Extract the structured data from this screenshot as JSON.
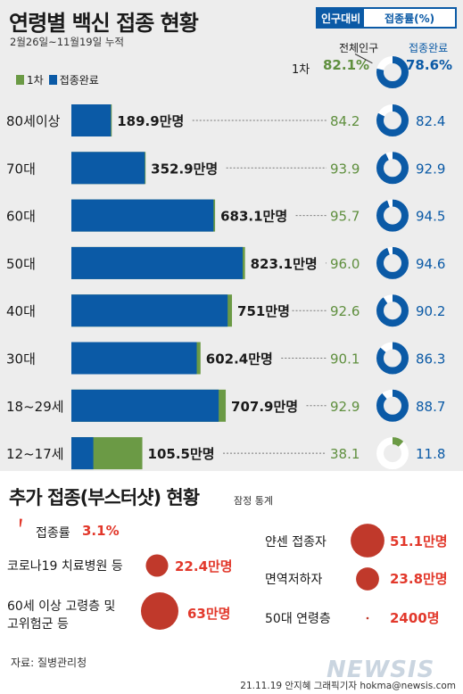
{
  "header": {
    "title": "연령별 백신 접종 현황",
    "badge_left": "인구대비",
    "badge_right": "접종률(%)",
    "period": "2월26일~11월19일 누적",
    "col_total": "전체인구",
    "col_done": "접종완료"
  },
  "legend": {
    "first_dose": "1차",
    "completed": "접종완료"
  },
  "colors": {
    "first_dose": "#6b9a45",
    "completed": "#0b5aa6",
    "accent_red": "#e2382b",
    "bubble": "#c0392b",
    "ring_bg": "#ffffff"
  },
  "overall": {
    "label": "1차",
    "total_pct": "82.1%",
    "done_pct": "78.6%",
    "total_value": 82.1,
    "done_value": 78.6
  },
  "chart_data": {
    "type": "bar",
    "title": "연령별 백신 접종 현황",
    "categories": [
      "80세이상",
      "70대",
      "60대",
      "50대",
      "40대",
      "30대",
      "18~29세",
      "12~17세"
    ],
    "series": [
      {
        "name": "1차",
        "values": [
          194.0,
          356.5,
          690.6,
          834.4,
          771.8,
          620.7,
          741.8,
          341.0
        ]
      },
      {
        "name": "접종완료",
        "values": [
          189.9,
          352.9,
          683.1,
          823.1,
          751.0,
          602.4,
          707.9,
          105.5
        ]
      }
    ],
    "value_labels": [
      "189.9만명",
      "352.9만명",
      "683.1만명",
      "823.1만명",
      "751만명",
      "602.4만명",
      "707.9만명",
      "105.5만명"
    ],
    "first_dose_pct": [
      "84.2",
      "93.9",
      "95.7",
      "96.0",
      "92.6",
      "90.1",
      "92.9",
      "38.1"
    ],
    "completed_pct": [
      "82.4",
      "92.9",
      "94.5",
      "94.6",
      "90.2",
      "86.3",
      "88.7",
      "11.8"
    ],
    "first_dose_pct_values": [
      84.2,
      93.9,
      95.7,
      96.0,
      92.6,
      90.1,
      92.9,
      38.1
    ],
    "completed_pct_values": [
      82.4,
      92.9,
      94.5,
      94.6,
      90.2,
      86.3,
      88.7,
      11.8
    ],
    "xlim": [
      0,
      850
    ]
  },
  "booster": {
    "title": "추가 접종(부스터샷) 현황",
    "subtitle": "잠정 통계",
    "rate_label": "접종률",
    "rate_text": "3.1%",
    "rate_value": 3.1,
    "groups": [
      {
        "label": "코로나19 치료병원 등",
        "value_text": "22.4만명",
        "value": 22.4
      },
      {
        "label": "60세 이상 고령층 및",
        "label2": "고위험군 등",
        "value_text": "63만명",
        "value": 63.0
      },
      {
        "label": "얀센 접종자",
        "value_text": "51.1만명",
        "value": 51.1
      },
      {
        "label": "면역저하자",
        "value_text": "23.8만명",
        "value": 23.8
      },
      {
        "label": "50대 연령층",
        "value_text": "2400명",
        "value": 0.24
      }
    ]
  },
  "footer": {
    "source": "자료: 질병관리청",
    "credit": "21.11.19 안지혜 그래픽기자 hokma@newsis.com",
    "watermark": "NEWSIS"
  }
}
